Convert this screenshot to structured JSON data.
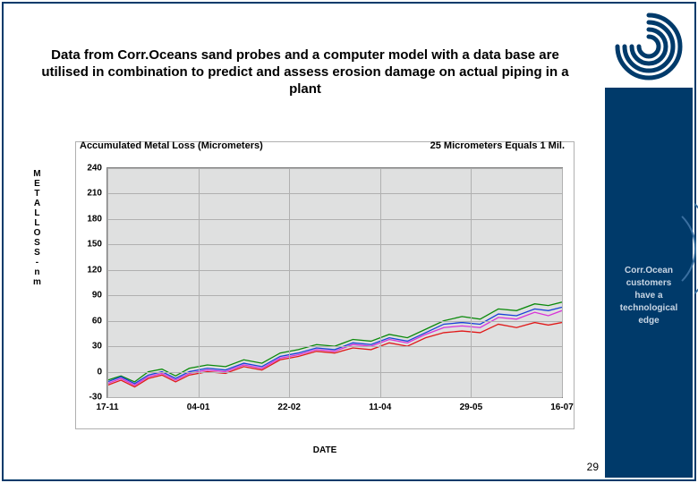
{
  "brand": {
    "name": "CorrOcean",
    "primary_color": "#003a6a"
  },
  "slide": {
    "title": "Data from Corr.Oceans sand probes and a computer model with a data base are utilised in combination to predict and assess erosion damage on actual piping in a plant",
    "page_number": "29"
  },
  "sidebar": {
    "slogan_l1": "Corr.Ocean",
    "slogan_l2": "customers",
    "slogan_l3": "have a",
    "slogan_l4": "technological",
    "slogan_l5": "edge"
  },
  "chart": {
    "type": "line",
    "title_left": "Accumulated Metal Loss (Micrometers)",
    "title_right": "25 Micrometers Equals 1 Mil.",
    "xaxis_label": "DATE",
    "yaxis_label_chars": [
      "M",
      "E",
      "T",
      "A",
      "L",
      " ",
      "L",
      "O",
      "S",
      "S",
      " ",
      "-",
      " ",
      "n",
      "m"
    ],
    "categories": [
      "17-11",
      "04-01",
      "22-02",
      "11-04",
      "29-05",
      "16-07"
    ],
    "x_positions": [
      0,
      0.2,
      0.4,
      0.6,
      0.8,
      1.0
    ],
    "yticks": [
      -30,
      0,
      30,
      60,
      90,
      120,
      150,
      180,
      210,
      240
    ],
    "ylim": [
      -30,
      240
    ],
    "plot_bg": "#dfe0e0",
    "grid_color": "#b0b0b0",
    "series": [
      {
        "name": "green",
        "color": "#0b8a0b",
        "width": 1.3,
        "x": [
          0,
          0.03,
          0.06,
          0.09,
          0.12,
          0.15,
          0.18,
          0.22,
          0.26,
          0.3,
          0.34,
          0.38,
          0.42,
          0.46,
          0.5,
          0.54,
          0.58,
          0.62,
          0.66,
          0.7,
          0.74,
          0.78,
          0.82,
          0.86,
          0.9,
          0.94,
          0.97,
          1.0
        ],
        "y": [
          -10,
          -5,
          -12,
          0,
          3,
          -5,
          4,
          8,
          6,
          14,
          10,
          22,
          26,
          32,
          30,
          38,
          36,
          44,
          40,
          50,
          60,
          65,
          62,
          74,
          72,
          80,
          78,
          82
        ]
      },
      {
        "name": "blue",
        "color": "#1840d8",
        "width": 1.3,
        "x": [
          0,
          0.03,
          0.06,
          0.09,
          0.12,
          0.15,
          0.18,
          0.22,
          0.26,
          0.3,
          0.34,
          0.38,
          0.42,
          0.46,
          0.5,
          0.54,
          0.58,
          0.62,
          0.66,
          0.7,
          0.74,
          0.78,
          0.82,
          0.86,
          0.9,
          0.94,
          0.97,
          1.0
        ],
        "y": [
          -12,
          -6,
          -14,
          -4,
          0,
          -8,
          0,
          4,
          2,
          10,
          6,
          18,
          22,
          28,
          26,
          34,
          32,
          40,
          36,
          46,
          56,
          58,
          56,
          68,
          66,
          74,
          72,
          76
        ]
      },
      {
        "name": "magenta",
        "color": "#d832d8",
        "width": 1.3,
        "x": [
          0,
          0.03,
          0.06,
          0.09,
          0.12,
          0.15,
          0.18,
          0.22,
          0.26,
          0.3,
          0.34,
          0.38,
          0.42,
          0.46,
          0.5,
          0.54,
          0.58,
          0.62,
          0.66,
          0.7,
          0.74,
          0.78,
          0.82,
          0.86,
          0.9,
          0.94,
          0.97,
          1.0
        ],
        "y": [
          -14,
          -8,
          -16,
          -6,
          -2,
          -10,
          -2,
          2,
          0,
          8,
          4,
          16,
          20,
          26,
          24,
          32,
          30,
          38,
          34,
          44,
          52,
          54,
          52,
          64,
          62,
          70,
          66,
          72
        ]
      },
      {
        "name": "red",
        "color": "#e01818",
        "width": 1.3,
        "x": [
          0,
          0.03,
          0.06,
          0.09,
          0.12,
          0.15,
          0.18,
          0.22,
          0.26,
          0.3,
          0.34,
          0.38,
          0.42,
          0.46,
          0.5,
          0.54,
          0.58,
          0.62,
          0.66,
          0.7,
          0.74,
          0.78,
          0.82,
          0.86,
          0.9,
          0.94,
          0.97,
          1.0
        ],
        "y": [
          -16,
          -10,
          -18,
          -8,
          -4,
          -12,
          -4,
          0,
          -2,
          6,
          2,
          14,
          18,
          24,
          22,
          28,
          26,
          34,
          30,
          40,
          46,
          48,
          46,
          56,
          52,
          58,
          55,
          58
        ]
      }
    ]
  }
}
